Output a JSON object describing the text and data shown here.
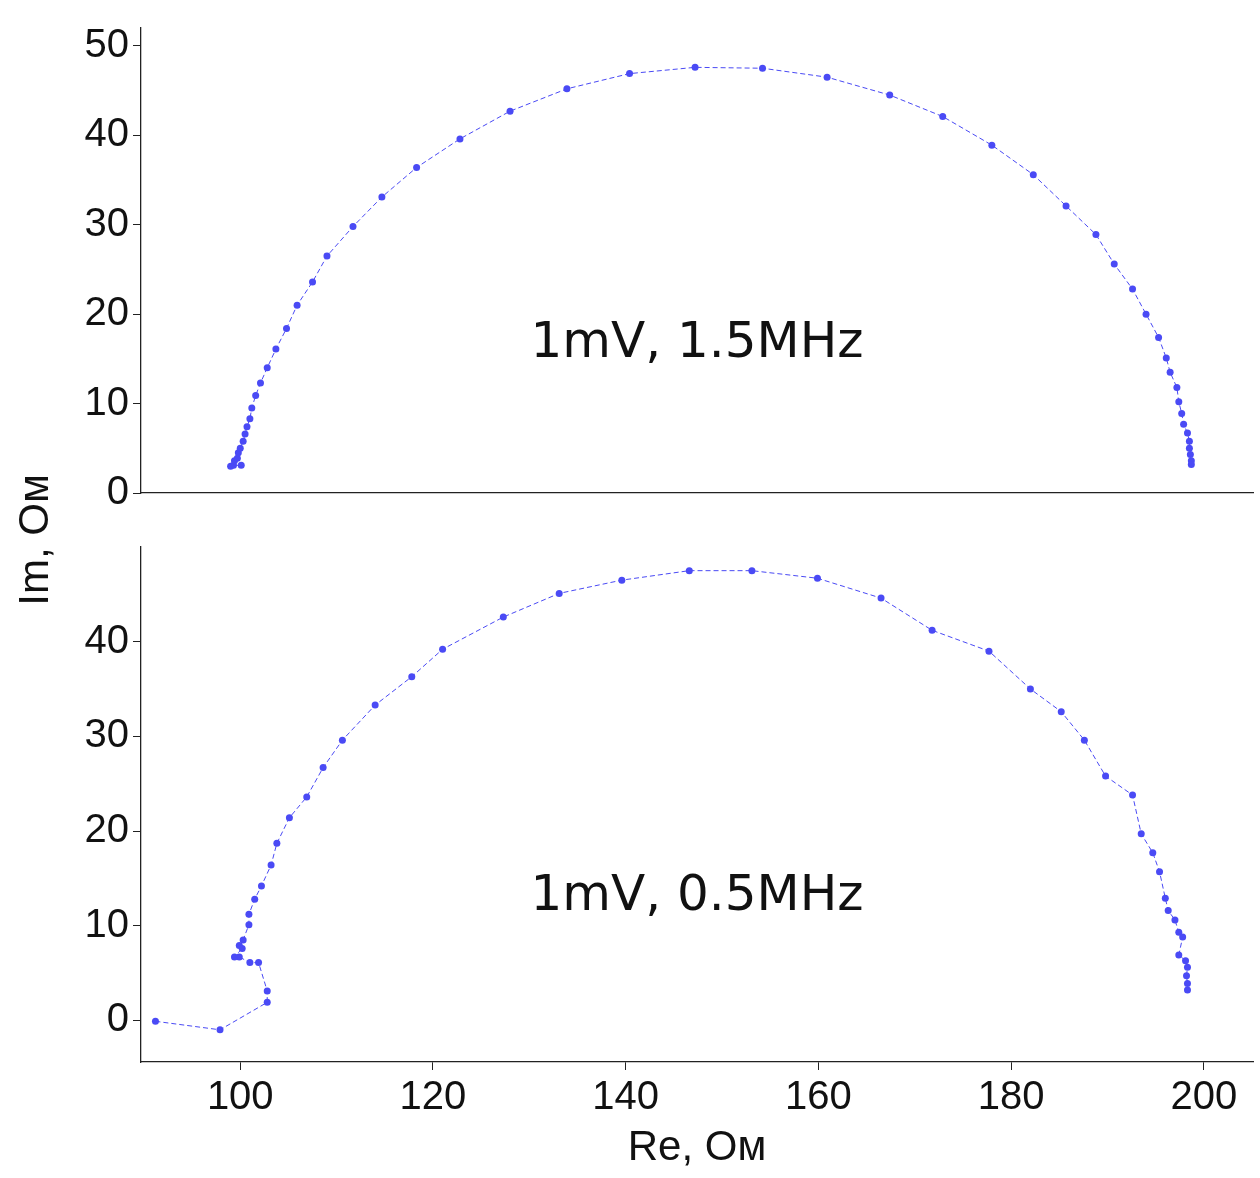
{
  "chart_data": [
    {
      "type": "line",
      "ylabel": "Im, Ом",
      "annotations": [
        "1mV, 1.5MHz"
      ],
      "color": "#4a4af5",
      "marker": "circle",
      "line_style": "dashed",
      "tick_labels": "y",
      "xlim": [
        89.7,
        205.1
      ],
      "ylim": [
        0,
        52
      ],
      "yticks": [
        0,
        10,
        20,
        30,
        40,
        50
      ],
      "x": [
        100.1,
        99.3,
        99.0,
        99.4,
        99.7,
        99.8,
        100.0,
        100.3,
        100.5,
        100.7,
        101.0,
        101.2,
        101.6,
        102.1,
        102.8,
        103.7,
        104.8,
        105.9,
        107.5,
        109.0,
        111.7,
        114.7,
        118.3,
        122.8,
        128.0,
        133.9,
        140.4,
        147.2,
        154.2,
        160.9,
        167.4,
        172.9,
        178.0,
        182.3,
        185.7,
        188.8,
        190.7,
        192.6,
        194.0,
        195.3,
        196.1,
        196.5,
        197.2,
        197.4,
        197.7,
        197.9,
        198.3,
        198.5,
        198.5,
        198.6,
        198.7,
        198.7
      ],
      "values": [
        3.1,
        3.1,
        3.0,
        3.6,
        3.9,
        4.5,
        5.0,
        5.8,
        6.6,
        7.4,
        8.3,
        9.5,
        10.9,
        12.3,
        14.0,
        16.1,
        18.4,
        21.0,
        23.6,
        26.5,
        29.8,
        33.1,
        36.4,
        39.6,
        42.7,
        45.2,
        46.9,
        47.6,
        47.5,
        46.5,
        44.5,
        42.1,
        38.9,
        35.6,
        32.1,
        28.9,
        25.6,
        22.8,
        20.0,
        17.4,
        15.1,
        13.5,
        11.8,
        10.2,
        8.9,
        7.7,
        6.7,
        5.8,
        5.0,
        4.3,
        3.6,
        3.2
      ]
    },
    {
      "type": "line",
      "xlabel": "Re, Ом",
      "annotations": [
        "1mV, 0.5MHz"
      ],
      "color": "#4a4af5",
      "marker": "circle",
      "line_style": "dashed",
      "xlim": [
        89.7,
        205.1
      ],
      "xticks": [
        100,
        120,
        140,
        160,
        180,
        200
      ],
      "ylim": [
        -4.4,
        50
      ],
      "yticks": [
        0,
        10,
        20,
        30,
        40
      ],
      "x": [
        91.2,
        97.9,
        102.8,
        102.8,
        101.9,
        101.0,
        99.9,
        99.4,
        100.2,
        99.9,
        100.3,
        100.9,
        100.9,
        101.5,
        102.2,
        103.2,
        103.8,
        105.1,
        106.9,
        108.6,
        110.6,
        114.0,
        117.8,
        121.0,
        127.3,
        133.1,
        139.6,
        146.6,
        153.1,
        159.9,
        166.5,
        171.8,
        177.7,
        182.0,
        185.2,
        187.6,
        189.8,
        192.6,
        193.5,
        194.7,
        195.4,
        196.0,
        196.3,
        197.0,
        197.4,
        197.8,
        197.4,
        198.1,
        198.3,
        198.2,
        198.3,
        198.3
      ],
      "values": [
        -0.1,
        -1.0,
        1.9,
        3.1,
        6.1,
        6.1,
        6.7,
        6.7,
        7.6,
        7.9,
        8.5,
        10.1,
        11.2,
        12.8,
        14.2,
        16.4,
        18.7,
        21.4,
        23.6,
        26.7,
        29.6,
        33.3,
        36.3,
        39.2,
        42.6,
        45.1,
        46.5,
        47.5,
        47.5,
        46.7,
        44.6,
        41.2,
        39.0,
        35.0,
        32.6,
        29.6,
        25.8,
        23.8,
        19.7,
        17.7,
        15.7,
        12.9,
        11.6,
        10.6,
        9.3,
        8.8,
        6.9,
        6.3,
        5.6,
        4.7,
        3.9,
        3.2
      ]
    }
  ]
}
